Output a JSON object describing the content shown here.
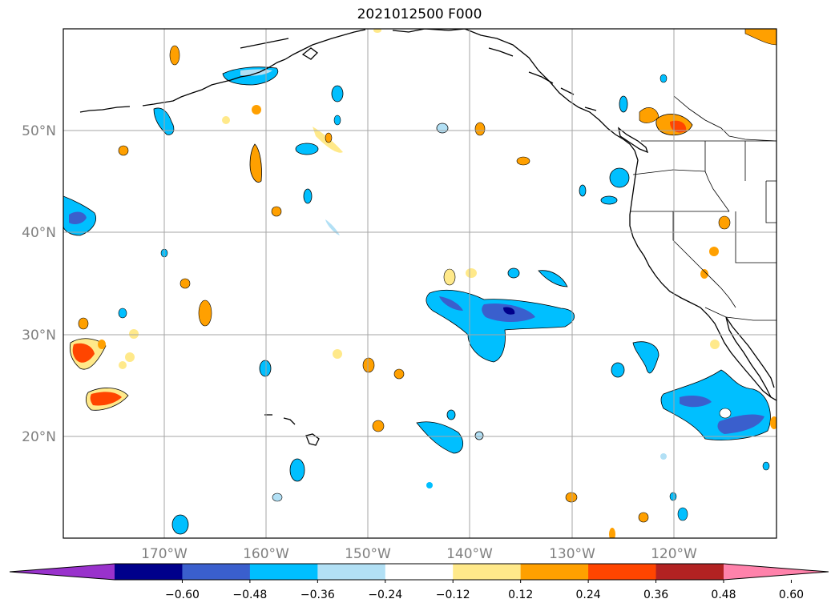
{
  "title": "2021012500 F000",
  "map": {
    "lat_labels": [
      "20°N",
      "30°N",
      "40°N",
      "50°N"
    ],
    "lon_labels": [
      "170°W",
      "160°W",
      "150°W",
      "140°W",
      "130°W",
      "120°W"
    ],
    "lon_range": [
      -180,
      -110
    ],
    "lat_range": [
      10,
      60
    ]
  },
  "colorbar": {
    "levels": [
      "−0.60",
      "−0.48",
      "−0.36",
      "−0.24",
      "−0.12",
      "0.12",
      "0.24",
      "0.36",
      "0.48",
      "0.60"
    ],
    "colors": [
      "#9932CC",
      "#00008B",
      "#3A5FCD",
      "#00BFFF",
      "#B2E0F5",
      "#FFFFFF",
      "#FFE98A",
      "#FFA000",
      "#FF4500",
      "#B22222",
      "#FF82AB"
    ]
  },
  "anomaly_colors": {
    "strong_neg": "#00008B",
    "mid_neg": "#3A5FCD",
    "neg": "#00BFFF",
    "weak_neg": "#B2E0F5",
    "weak_pos": "#FFE98A",
    "pos": "#FFA000",
    "mid_pos": "#FF4500",
    "strong_pos": "#B22222"
  }
}
